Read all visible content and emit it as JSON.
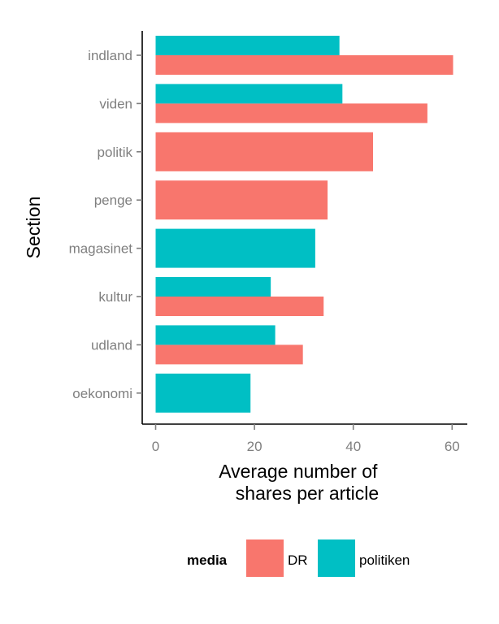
{
  "chart_data": {
    "type": "bar",
    "orientation": "horizontal",
    "categories": [
      "indland",
      "viden",
      "politik",
      "penge",
      "magasinet",
      "kultur",
      "udland",
      "oekonomi"
    ],
    "series": [
      {
        "name": "DR",
        "color": "#F8766D",
        "values": [
          60.2,
          55.0,
          44.0,
          34.8,
          null,
          34.0,
          29.8,
          null
        ]
      },
      {
        "name": "politiken",
        "color": "#00BFC4",
        "values": [
          37.2,
          37.8,
          null,
          null,
          32.3,
          23.3,
          24.2,
          19.2
        ]
      }
    ],
    "xlabel": [
      "Average number of",
      "shares per article"
    ],
    "ylabel": "Section",
    "xlim": [
      -2.5,
      63.5
    ],
    "xticks": [
      0,
      20,
      40,
      60
    ],
    "legend": {
      "title": "media",
      "position": "bottom"
    },
    "grid": false
  }
}
